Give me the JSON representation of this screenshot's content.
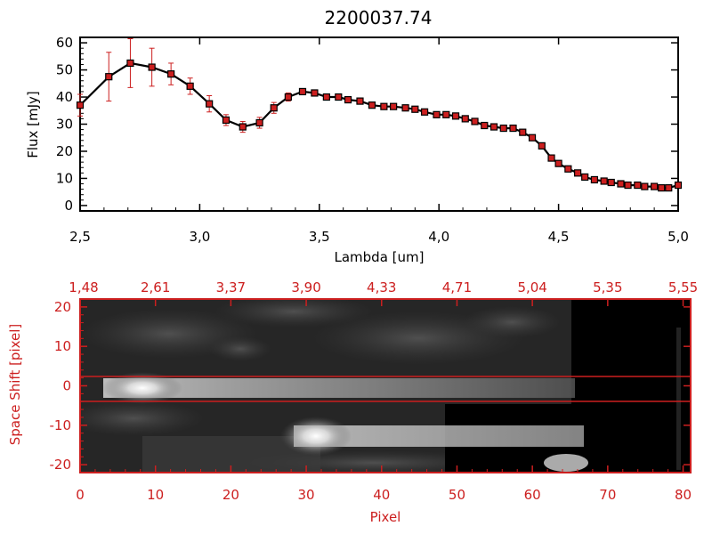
{
  "chart_data": [
    {
      "type": "line",
      "title": "2200037.74",
      "xlabel": "Lambda [um]",
      "ylabel": "Flux [mJy]",
      "xlim": [
        2.5,
        5.0
      ],
      "ylim": [
        -2,
        62
      ],
      "x_tick_labels": [
        "2,5",
        "3,0",
        "3,5",
        "4,0",
        "4,5",
        "5,0"
      ],
      "x_ticks": [
        2.5,
        3.0,
        3.5,
        4.0,
        4.5,
        5.0
      ],
      "y_ticks": [
        0,
        10,
        20,
        30,
        40,
        50,
        60
      ],
      "colors": {
        "line": "#000000",
        "marker": "#cc1f1f",
        "error_bar": "#cc1f1f"
      },
      "series": [
        {
          "x": [
            2.5,
            2.62,
            2.71,
            2.8,
            2.88,
            2.96,
            3.04,
            3.11,
            3.18,
            3.25,
            3.31,
            3.37,
            3.43,
            3.48,
            3.53,
            3.58,
            3.62,
            3.67,
            3.72,
            3.77,
            3.81,
            3.86,
            3.9,
            3.94,
            3.99,
            4.03,
            4.07,
            4.11,
            4.15,
            4.19,
            4.23,
            4.27,
            4.31,
            4.35,
            4.39,
            4.43,
            4.47,
            4.5,
            4.54,
            4.58,
            4.61,
            4.65,
            4.69,
            4.72,
            4.76,
            4.79,
            4.83,
            4.86,
            4.9,
            4.93,
            4.96,
            5.0
          ],
          "y": [
            37,
            47.5,
            52.5,
            51,
            48.5,
            44,
            37.5,
            31.5,
            29,
            30.5,
            36,
            40,
            42,
            41.5,
            40,
            40,
            39,
            38.5,
            37,
            36.5,
            36.5,
            36,
            35.5,
            34.5,
            33.5,
            33.5,
            33,
            32,
            31,
            29.5,
            29,
            28.5,
            28.5,
            27,
            25,
            22,
            17.5,
            15.5,
            13.5,
            12,
            10.5,
            9.5,
            9,
            8.5,
            8,
            7.5,
            7.5,
            7,
            7,
            6.5,
            6.5,
            7.5
          ],
          "error": [
            4,
            9,
            9,
            7,
            4,
            3,
            3,
            2,
            2,
            2,
            2,
            1.5,
            1,
            1,
            1,
            1,
            1,
            1,
            1,
            1,
            1,
            1,
            1,
            1,
            1,
            1,
            1,
            1,
            1,
            1,
            1,
            1,
            1,
            1,
            1,
            1,
            1,
            1,
            1,
            1,
            1,
            1,
            1,
            1,
            1,
            1,
            1,
            1,
            1,
            1,
            1,
            1
          ]
        }
      ]
    },
    {
      "type": "heatmap",
      "xlabel": "Pixel",
      "ylabel": "Space Shift [pixel]",
      "xlim": [
        0,
        81
      ],
      "ylim": [
        -22,
        22
      ],
      "x_ticks": [
        0,
        10,
        20,
        30,
        40,
        50,
        60,
        70,
        80
      ],
      "y_ticks": [
        -20,
        -10,
        0,
        10,
        20
      ],
      "top_tick_labels": [
        "1,48",
        "2,61",
        "3,37",
        "3,90",
        "4,33",
        "4,71",
        "5,04",
        "5,35",
        "5,55"
      ],
      "colormap": "grayscale",
      "extraction_lines": [
        3,
        -3
      ],
      "colors": {
        "axes": "#cc1f1f",
        "lines": "#cc1f1f"
      }
    }
  ]
}
